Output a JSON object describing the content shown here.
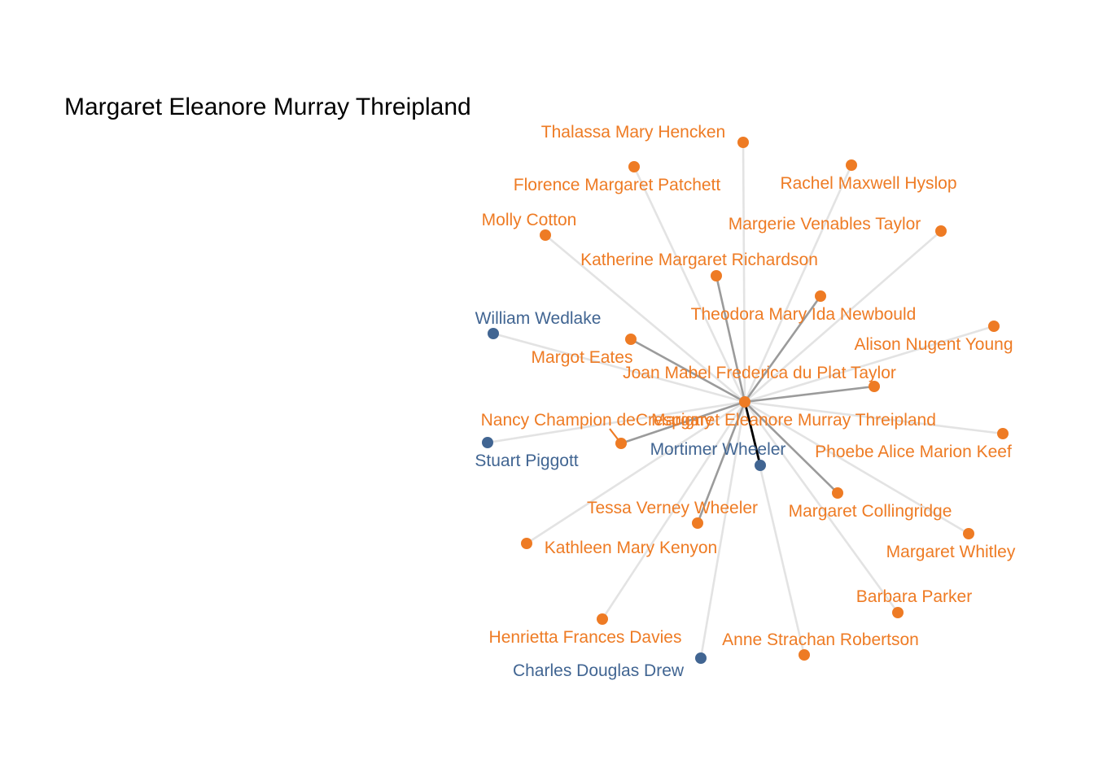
{
  "title": "Margaret Eleanore Murray Threipland",
  "colors": {
    "female": "#ee7b24",
    "male": "#416592",
    "edge_weak": "#e3e3e3",
    "edge_medium": "#9b9b9b",
    "edge_strong": "#000000"
  },
  "center": "Margaret Eleanore Murray Threipland",
  "nodes": [
    {
      "id": "center",
      "label": "Margaret Eleanore Murray Threipland",
      "group": "female"
    },
    {
      "id": "hencken",
      "label": "Thalassa Mary Hencken",
      "group": "female"
    },
    {
      "id": "patchett",
      "label": "Florence Margaret Patchett",
      "group": "female"
    },
    {
      "id": "hyslop",
      "label": "Rachel Maxwell Hyslop",
      "group": "female"
    },
    {
      "id": "cotton",
      "label": "Molly Cotton",
      "group": "female"
    },
    {
      "id": "vtaylor",
      "label": "Margerie Venables Taylor",
      "group": "female"
    },
    {
      "id": "richardson",
      "label": "Katherine Margaret Richardson",
      "group": "female"
    },
    {
      "id": "newbould",
      "label": "Theodora Mary Ida Newbould",
      "group": "female"
    },
    {
      "id": "wedlake",
      "label": "William Wedlake",
      "group": "male"
    },
    {
      "id": "young",
      "label": "Alison Nugent Young",
      "group": "female"
    },
    {
      "id": "eates",
      "label": "Margot Eates",
      "group": "female"
    },
    {
      "id": "duplat",
      "label": "Joan Mabel Frederica du Plat Taylor",
      "group": "female"
    },
    {
      "id": "crespigny",
      "label": "Nancy Champion deCrespigny",
      "group": "female"
    },
    {
      "id": "keef",
      "label": "Phoebe Alice Marion Keef",
      "group": "female"
    },
    {
      "id": "piggott",
      "label": "Stuart Piggott",
      "group": "male"
    },
    {
      "id": "mwheeler",
      "label": "Mortimer Wheeler",
      "group": "male"
    },
    {
      "id": "twheeler",
      "label": "Tessa Verney Wheeler",
      "group": "female"
    },
    {
      "id": "collingridge",
      "label": "Margaret Collingridge",
      "group": "female"
    },
    {
      "id": "kenyon",
      "label": "Kathleen Mary Kenyon",
      "group": "female"
    },
    {
      "id": "whitley",
      "label": "Margaret Whitley",
      "group": "female"
    },
    {
      "id": "parker",
      "label": "Barbara Parker",
      "group": "female"
    },
    {
      "id": "davies",
      "label": "Henrietta Frances Davies",
      "group": "female"
    },
    {
      "id": "robertson",
      "label": "Anne Strachan Robertson",
      "group": "female"
    },
    {
      "id": "drew",
      "label": "Charles Douglas Drew",
      "group": "male"
    }
  ],
  "edges": [
    {
      "target": "hencken",
      "weight": "weak"
    },
    {
      "target": "patchett",
      "weight": "weak"
    },
    {
      "target": "hyslop",
      "weight": "weak"
    },
    {
      "target": "cotton",
      "weight": "weak"
    },
    {
      "target": "vtaylor",
      "weight": "weak"
    },
    {
      "target": "richardson",
      "weight": "medium"
    },
    {
      "target": "newbould",
      "weight": "medium"
    },
    {
      "target": "wedlake",
      "weight": "weak"
    },
    {
      "target": "young",
      "weight": "weak"
    },
    {
      "target": "eates",
      "weight": "medium"
    },
    {
      "target": "duplat",
      "weight": "medium"
    },
    {
      "target": "crespigny",
      "weight": "medium"
    },
    {
      "target": "keef",
      "weight": "weak"
    },
    {
      "target": "piggott",
      "weight": "weak"
    },
    {
      "target": "mwheeler",
      "weight": "strong"
    },
    {
      "target": "twheeler",
      "weight": "medium"
    },
    {
      "target": "collingridge",
      "weight": "medium"
    },
    {
      "target": "kenyon",
      "weight": "weak"
    },
    {
      "target": "whitley",
      "weight": "weak"
    },
    {
      "target": "parker",
      "weight": "weak"
    },
    {
      "target": "davies",
      "weight": "weak"
    },
    {
      "target": "robertson",
      "weight": "weak"
    },
    {
      "target": "drew",
      "weight": "weak"
    }
  ]
}
